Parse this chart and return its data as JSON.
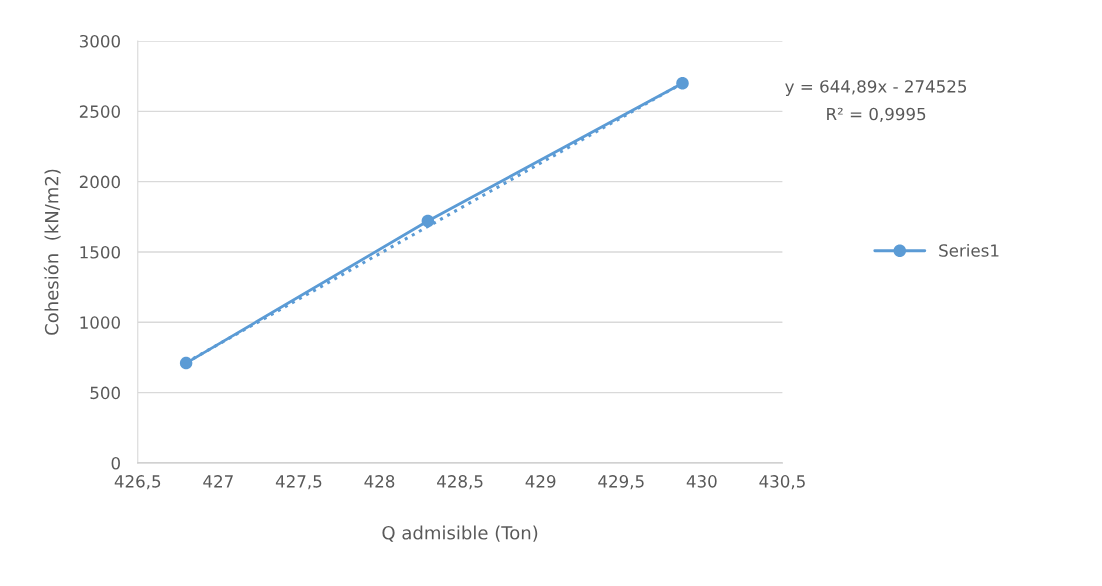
{
  "chart_data": {
    "type": "line",
    "xlabel": "Q admisible (Ton)",
    "ylabel": "Cohesión  (kN/m2)",
    "xlim": [
      426.5,
      430.5
    ],
    "xticks": [
      {
        "value": 426.5,
        "label": "426,5"
      },
      427,
      {
        "value": 427.5,
        "label": "427,5"
      },
      428,
      {
        "value": 428.5,
        "label": "428,5"
      },
      429,
      {
        "value": 429.5,
        "label": "429,5"
      },
      430,
      {
        "value": 430.5,
        "label": "430,5"
      }
    ],
    "ylim": [
      0,
      3000
    ],
    "yticks": [
      0,
      500,
      1000,
      1500,
      2000,
      2500,
      3000
    ],
    "grid": "y",
    "legend": "right",
    "series": [
      {
        "name": "Series1",
        "color": "#5b9bd5",
        "marker": "circle",
        "line_style": "solid",
        "x": [
          426.8,
          428.3,
          429.88
        ],
        "values": [
          710,
          1720,
          2700
        ]
      },
      {
        "color": "#5b9bd5",
        "marker": "none",
        "line_style": "dotted",
        "x": [
          426.8,
          429.88
        ],
        "values": [
          714,
          2700
        ]
      }
    ],
    "annotations": [
      "y = 644,89x - 274525",
      "R² = 0,9995"
    ]
  }
}
